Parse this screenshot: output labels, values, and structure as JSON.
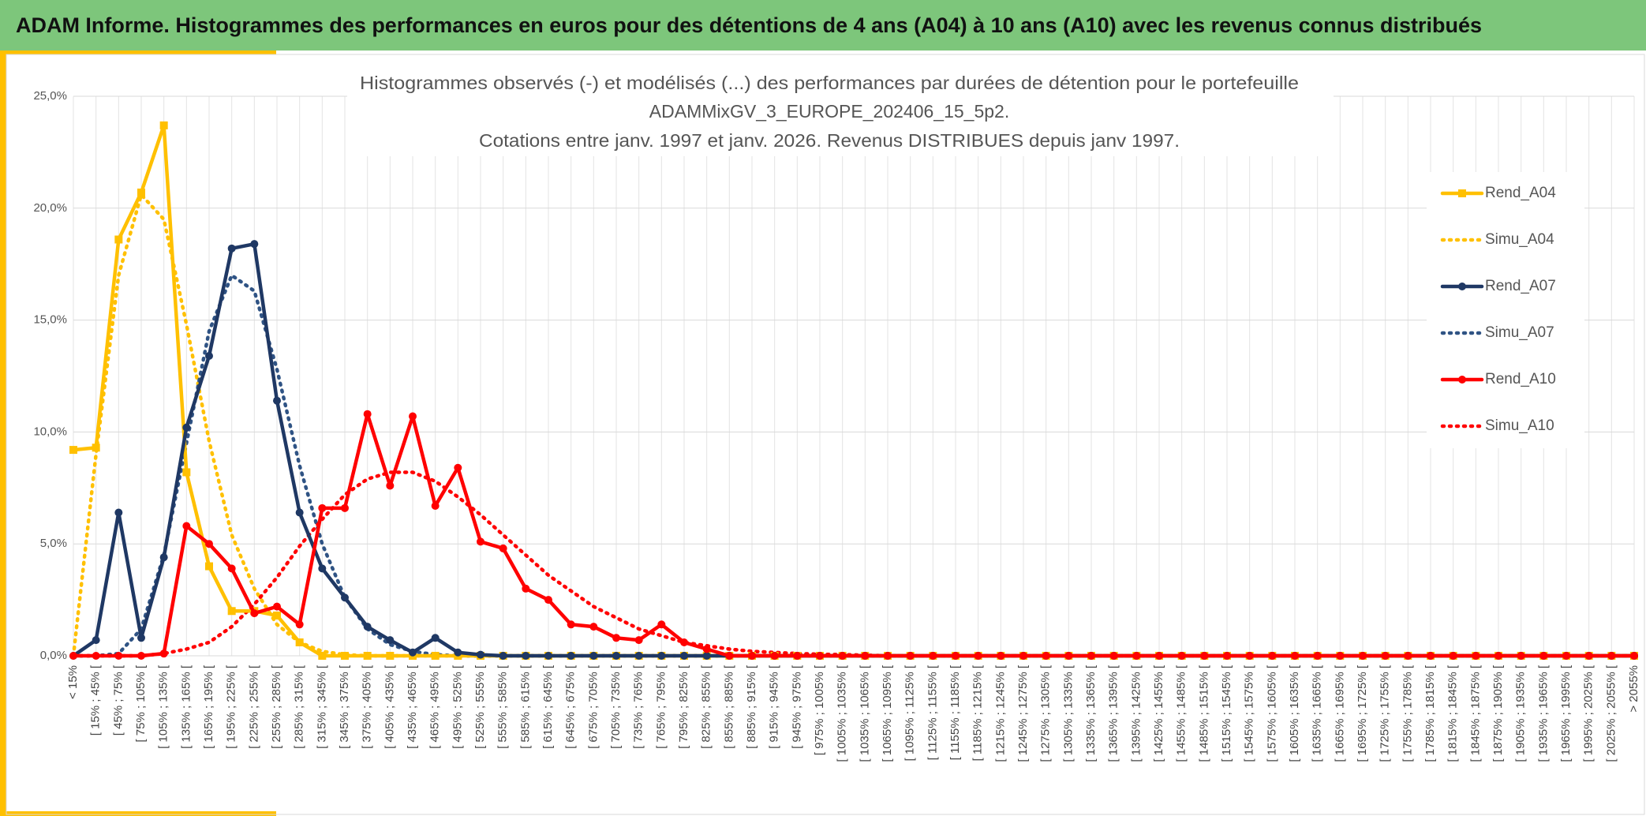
{
  "header": {
    "title": "ADAM Informe. Histogrammes des performances en euros pour des détentions de 4 ans (A04) à 10 ans (A10) avec les revenus connus distribués"
  },
  "chart_data": {
    "type": "line",
    "title": [
      "Histogrammes observés (-) et modélisés (...) des performances par durées de détention pour le portefeuille",
      "ADAMMixGV_3_EUROPE_202406_15_5p2.",
      "Cotations entre janv. 1997 et janv. 2026. Revenus DISTRIBUES depuis janv 1997."
    ],
    "categories": [
      "< 15%",
      "[ 15% ; 45% [",
      "[ 45% ; 75% [",
      "[ 75% ; 105% [",
      "[ 105% ; 135% [",
      "[ 135% ; 165% [",
      "[ 165% ; 195% [",
      "[ 195% ; 225% [",
      "[ 225% ; 255% [",
      "[ 255% ; 285% [",
      "[ 285% ; 315% [",
      "[ 315% ; 345% [",
      "[ 345% ; 375% [",
      "[ 375% ; 405% [",
      "[ 405% ; 435% [",
      "[ 435% ; 465% [",
      "[ 465% ; 495% [",
      "[ 495% ; 525% [",
      "[ 525% ; 555% [",
      "[ 555% ; 585% [",
      "[ 585% ; 615% [",
      "[ 615% ; 645% [",
      "[ 645% ; 675% [",
      "[ 675% ; 705% [",
      "[ 705% ; 735% [",
      "[ 735% ; 765% [",
      "[ 765% ; 795% [",
      "[ 795% ; 825% [",
      "[ 825% ; 855% [",
      "[ 855% ; 885% [",
      "[ 885% ; 915% [",
      "[ 915% ; 945% [",
      "[ 945% ; 975% [",
      "[ 975% ; 1005% [",
      "[ 1005% ; 1035% [",
      "[ 1035% ; 1065% [",
      "[ 1065% ; 1095% [",
      "[ 1095% ; 1125% [",
      "[ 1125% ; 1155% [",
      "[ 1155% ; 1185% [",
      "[ 1185% ; 1215% [",
      "[ 1215% ; 1245% [",
      "[ 1245% ; 1275% [",
      "[ 1275% ; 1305% [",
      "[ 1305% ; 1335% [",
      "[ 1335% ; 1365% [",
      "[ 1365% ; 1395% [",
      "[ 1395% ; 1425% [",
      "[ 1425% ; 1455% [",
      "[ 1455% ; 1485% [",
      "[ 1485% ; 1515% [",
      "[ 1515% ; 1545% [",
      "[ 1545% ; 1575% [",
      "[ 1575% ; 1605% [",
      "[ 1605% ; 1635% [",
      "[ 1635% ; 1665% [",
      "[ 1665% ; 1695% [",
      "[ 1695% ; 1725% [",
      "[ 1725% ; 1755% [",
      "[ 1755% ; 1785% [",
      "[ 1785% ; 1815% [",
      "[ 1815% ; 1845% [",
      "[ 1845% ; 1875% [",
      "[ 1875% ; 1905% [",
      "[ 1905% ; 1935% [",
      "[ 1935% ; 1965% [",
      "[ 1965% ; 1995% [",
      "[ 1995% ; 2025% [",
      "[ 2025% ; 2055% [",
      "> 2055%"
    ],
    "ylim": [
      0,
      25
    ],
    "yticks": [
      {
        "value": 0,
        "label": "0,0%"
      },
      {
        "value": 5,
        "label": "5,0%"
      },
      {
        "value": 10,
        "label": "10,0%"
      },
      {
        "value": 15,
        "label": "15,0%"
      },
      {
        "value": 20,
        "label": "20,0%"
      },
      {
        "value": 25,
        "label": "25,0%"
      }
    ],
    "grid": true,
    "legend": "right",
    "series": [
      {
        "name": "Rend_A04",
        "color": "#ffc000",
        "style": "solid",
        "marker": "square",
        "values": [
          9.2,
          9.3,
          18.6,
          20.7,
          23.7,
          8.2,
          4.0,
          2.0,
          2.0,
          1.8,
          0.6,
          0,
          0,
          0,
          0,
          0,
          0,
          0,
          0,
          0,
          0,
          0,
          0,
          0,
          0,
          0,
          0,
          0,
          0,
          0,
          0,
          0,
          0,
          0,
          0,
          0,
          0,
          0,
          0,
          0,
          0,
          0,
          0,
          0,
          0,
          0,
          0,
          0,
          0,
          0,
          0,
          0,
          0,
          0,
          0,
          0,
          0,
          0,
          0,
          0,
          0,
          0,
          0,
          0,
          0,
          0,
          0,
          0,
          0,
          0
        ]
      },
      {
        "name": "Simu_A04",
        "color": "#ffc000",
        "style": "dotted",
        "values": [
          0,
          9.0,
          17.0,
          20.6,
          19.5,
          14.8,
          9.6,
          5.4,
          3.0,
          1.4,
          0.6,
          0.2,
          0.05,
          0,
          0,
          0,
          0,
          0,
          0,
          0,
          0,
          0,
          0,
          0,
          0,
          0,
          0,
          0,
          0,
          0,
          0,
          0,
          0,
          0,
          0,
          0,
          0,
          0,
          0,
          0,
          0,
          0,
          0,
          0,
          0,
          0,
          0,
          0,
          0,
          0,
          0,
          0,
          0,
          0,
          0,
          0,
          0,
          0,
          0,
          0,
          0,
          0,
          0,
          0,
          0,
          0,
          0,
          0,
          0,
          0
        ]
      },
      {
        "name": "Rend_A07",
        "color": "#1f3864",
        "style": "solid",
        "marker": "circle",
        "values": [
          0,
          0.7,
          6.4,
          0.8,
          4.4,
          10.2,
          13.4,
          18.2,
          18.4,
          11.4,
          6.4,
          3.9,
          2.6,
          1.3,
          0.7,
          0.15,
          0.8,
          0.15,
          0.05,
          0,
          0,
          0,
          0,
          0,
          0,
          0,
          0,
          0,
          0,
          0,
          0,
          0,
          0,
          0,
          0,
          0,
          0,
          0,
          0,
          0,
          0,
          0,
          0,
          0,
          0,
          0,
          0,
          0,
          0,
          0,
          0,
          0,
          0,
          0,
          0,
          0,
          0,
          0,
          0,
          0,
          0,
          0,
          0,
          0,
          0,
          0,
          0,
          0,
          0,
          0
        ]
      },
      {
        "name": "Simu_A07",
        "color": "#2f5384",
        "style": "dotted",
        "values": [
          0,
          0,
          0.1,
          1.2,
          4.5,
          9.5,
          14.5,
          17.0,
          16.3,
          12.8,
          8.5,
          5.0,
          2.6,
          1.2,
          0.5,
          0.2,
          0.05,
          0,
          0,
          0,
          0,
          0,
          0,
          0,
          0,
          0,
          0,
          0,
          0,
          0,
          0,
          0,
          0,
          0,
          0,
          0,
          0,
          0,
          0,
          0,
          0,
          0,
          0,
          0,
          0,
          0,
          0,
          0,
          0,
          0,
          0,
          0,
          0,
          0,
          0,
          0,
          0,
          0,
          0,
          0,
          0,
          0,
          0,
          0,
          0,
          0,
          0,
          0,
          0,
          0
        ]
      },
      {
        "name": "Rend_A10",
        "color": "#ff0000",
        "style": "solid",
        "marker": "circle",
        "values": [
          0,
          0,
          0,
          0,
          0.1,
          5.8,
          5.0,
          3.9,
          1.9,
          2.2,
          1.4,
          6.6,
          6.6,
          10.8,
          7.6,
          10.7,
          6.7,
          8.4,
          5.1,
          4.8,
          3.0,
          2.5,
          1.4,
          1.3,
          0.8,
          0.7,
          1.4,
          0.6,
          0.3,
          0,
          0,
          0,
          0,
          0,
          0,
          0,
          0,
          0,
          0,
          0,
          0,
          0,
          0,
          0,
          0,
          0,
          0,
          0,
          0,
          0,
          0,
          0,
          0,
          0,
          0,
          0,
          0,
          0,
          0,
          0,
          0,
          0,
          0,
          0,
          0,
          0,
          0,
          0,
          0,
          0
        ]
      },
      {
        "name": "Simu_A10",
        "color": "#ff0000",
        "style": "dotted",
        "values": [
          0,
          0,
          0,
          0,
          0.1,
          0.3,
          0.6,
          1.3,
          2.3,
          3.5,
          4.9,
          6.1,
          7.2,
          7.9,
          8.2,
          8.2,
          7.8,
          7.1,
          6.3,
          5.4,
          4.5,
          3.6,
          2.9,
          2.2,
          1.7,
          1.2,
          0.9,
          0.6,
          0.45,
          0.3,
          0.2,
          0.15,
          0.1,
          0.07,
          0.05,
          0.03,
          0,
          0,
          0,
          0,
          0,
          0,
          0,
          0,
          0,
          0,
          0,
          0,
          0,
          0,
          0,
          0,
          0,
          0,
          0,
          0,
          0,
          0,
          0,
          0,
          0,
          0,
          0,
          0,
          0,
          0,
          0,
          0,
          0,
          0
        ]
      }
    ]
  }
}
